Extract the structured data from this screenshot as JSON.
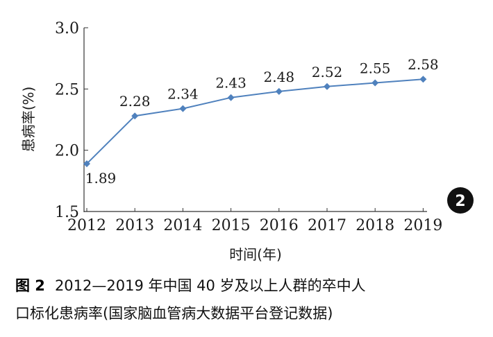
{
  "chart_data": {
    "type": "line",
    "categories": [
      "2012",
      "2013",
      "2014",
      "2015",
      "2016",
      "2017",
      "2018",
      "2019"
    ],
    "series": [
      {
        "values": [
          1.89,
          2.28,
          2.34,
          2.43,
          2.48,
          2.52,
          2.55,
          2.58
        ]
      }
    ],
    "data_labels": [
      "1.89",
      "2.28",
      "2.34",
      "2.43",
      "2.48",
      "2.52",
      "2.55",
      "2.58"
    ],
    "ylabel": "患病率(%)",
    "xlabel": "时间(年)",
    "ylim": [
      1.5,
      3.0
    ],
    "yticks": [
      "1.5",
      "2.0",
      "2.5",
      "3.0"
    ],
    "grid": false,
    "marker": "diamond",
    "line_color": "#4f81bd"
  },
  "badge": "2",
  "caption": {
    "figure_label": "图 2",
    "line1": "2012—2019 年中国 40 岁及以上人群的卒中人",
    "line2": "口标化患病率(国家脑血管病大数据平台登记数据)"
  }
}
